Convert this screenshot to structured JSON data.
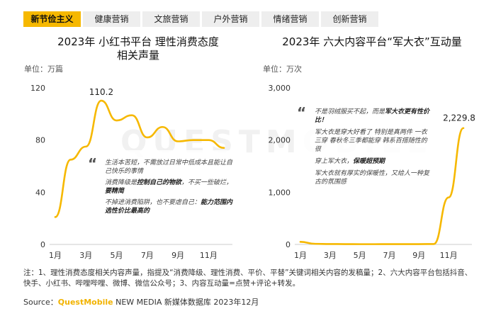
{
  "tabs": [
    {
      "label": "新节俭主义",
      "active": true
    },
    {
      "label": "健康营销",
      "active": false
    },
    {
      "label": "文旅营销",
      "active": false
    },
    {
      "label": "户外营销",
      "active": false
    },
    {
      "label": "情绪营销",
      "active": false
    },
    {
      "label": "创新营销",
      "active": false
    }
  ],
  "watermark": "QUESTMOBILE",
  "chart_data": [
    {
      "type": "line",
      "title_line1": "2023年 小红书平台 理性消费态度",
      "title_line2": "相关声量",
      "unit": "单位：万篇",
      "x": [
        1,
        2,
        3,
        4,
        5,
        6,
        7,
        8,
        9,
        10,
        11,
        12
      ],
      "xticks": [
        "1月",
        "3月",
        "5月",
        "7月",
        "9月",
        "11月"
      ],
      "xtick_values": [
        1,
        3,
        5,
        7,
        9,
        11
      ],
      "yticks": [
        "0",
        "40",
        "80",
        "120"
      ],
      "ylim": [
        0,
        120
      ],
      "series": [
        {
          "values": [
            21,
            65,
            75,
            110.2,
            95,
            99,
            82,
            90,
            79,
            80,
            80,
            74
          ]
        }
      ],
      "peak_label": "110.2",
      "peak_index": 3,
      "line_color": "#f6b800",
      "annotation": [
        {
          "text": "生活本苦短，不需放过日常中低成本且能让自己快乐的事情",
          "bold": false
        },
        {
          "text": "消费降级是",
          "bold": false,
          "tail_bold": "控制自己的物欲",
          "tail": "，不买一些破烂，",
          "tail_bold2": "要精简"
        },
        {
          "text": "不掉进消费陷阱，也不要虐自己：",
          "bold": false,
          "tail_bold": "能力范围内选性价比最高的"
        }
      ]
    },
    {
      "type": "line",
      "title": "2023年 六大内容平台“军大衣”互动量",
      "unit": "单位：万次",
      "x": [
        1,
        2,
        3,
        4,
        5,
        6,
        7,
        8,
        9,
        10,
        11,
        12
      ],
      "xticks": [
        "1月",
        "3月",
        "5月",
        "7月",
        "9月",
        "11月"
      ],
      "xtick_values": [
        1,
        3,
        5,
        7,
        9,
        11
      ],
      "yticks": [
        "0",
        "1,000",
        "2,000",
        "3,000"
      ],
      "ylim": [
        0,
        3000
      ],
      "series": [
        {
          "values": [
            50,
            12,
            8,
            6,
            5,
            5,
            6,
            6,
            6,
            8,
            900,
            2229.8
          ]
        }
      ],
      "end_label": "2,229.8",
      "line_color": "#f6b800",
      "annotation": [
        {
          "text": "不是羽绒服买不起，而是",
          "bold_tail": "军大衣更有性价比！"
        },
        {
          "text": "军大衣是穿大好看了 特别是真两件 一衣三穿 春秋冬三季都能穿 韩系百搭随性的很",
          "bold_tail": ""
        },
        {
          "text": "穿上军大衣，",
          "bold_tail": "保暖超预期"
        },
        {
          "text": "军大衣就有厚实的保暖性，又给人一种复古的氛围感",
          "bold_tail": ""
        }
      ]
    }
  ],
  "note_text": "注：1、理性消费态度相关内容声量，指提及“消费降级、理性消费、平价、平替”关键词相关内容的发稿量；2、六大内容平台包括抖音、快手、小红书、哔哩哔哩、微博、微信公众号；3、内容互动量=点赞+评论+转发。",
  "source_label": "Source：",
  "source_brand": "QuestMobile",
  "source_rest": " NEW MEDIA 新媒体数据库 2023年12月"
}
